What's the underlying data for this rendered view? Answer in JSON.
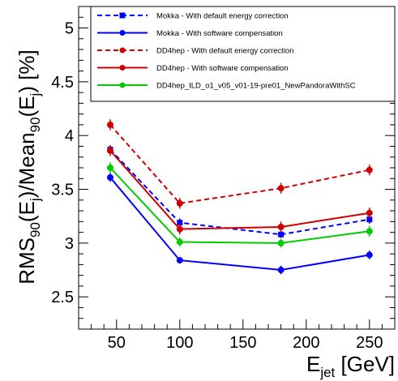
{
  "chart_data": {
    "type": "line",
    "x": [
      45,
      100,
      180,
      250
    ],
    "xlim": [
      20,
      270
    ],
    "ylim": [
      2.2,
      5.2
    ],
    "xticks": [
      50,
      100,
      150,
      200,
      250
    ],
    "yticks": [
      2.5,
      3,
      3.5,
      4,
      4.5,
      5
    ],
    "xlabel": {
      "base": "E",
      "sub": "jet",
      "rest": " [GeV]"
    },
    "ylabel": {
      "p1": "RMS",
      "s1": "90",
      "p2": "(E",
      "s2": "j",
      "p3": ")/Mean",
      "s3": "90",
      "p4": "(E",
      "s4": "j",
      "p5": ") [%]"
    },
    "grid": false,
    "legend_position": "top-right",
    "series": [
      {
        "name": "Mokka - With default energy correction",
        "color": "#0000ff",
        "style": "dashed",
        "marker": "square",
        "values": [
          3.87,
          3.19,
          3.08,
          3.22
        ],
        "errors": [
          0.04,
          0.04,
          0.03,
          0.04
        ]
      },
      {
        "name": "Mokka - With software compensation",
        "color": "#0000ff",
        "style": "solid",
        "marker": "circle",
        "values": [
          3.61,
          2.84,
          2.75,
          2.89
        ],
        "errors": [
          0.04,
          0.03,
          0.04,
          0.04
        ]
      },
      {
        "name": "DD4hep - With default energy correction",
        "color": "#cc0000",
        "style": "dashed",
        "marker": "circle",
        "values": [
          4.1,
          3.37,
          3.51,
          3.68
        ],
        "errors": [
          0.05,
          0.05,
          0.05,
          0.05
        ]
      },
      {
        "name": "DD4hep - With software compensation",
        "color": "#cc0000",
        "style": "solid",
        "marker": "circle",
        "values": [
          3.86,
          3.13,
          3.15,
          3.28
        ],
        "errors": [
          0.05,
          0.05,
          0.05,
          0.05
        ]
      },
      {
        "name": "DD4hep_ILD_o1_v05_v01-19-pre01_NewPandoraWithSC",
        "color": "#00cc00",
        "style": "solid",
        "marker": "circle",
        "values": [
          3.7,
          3.01,
          3.0,
          3.11
        ],
        "errors": [
          0.05,
          0.04,
          0.04,
          0.05
        ]
      }
    ]
  }
}
